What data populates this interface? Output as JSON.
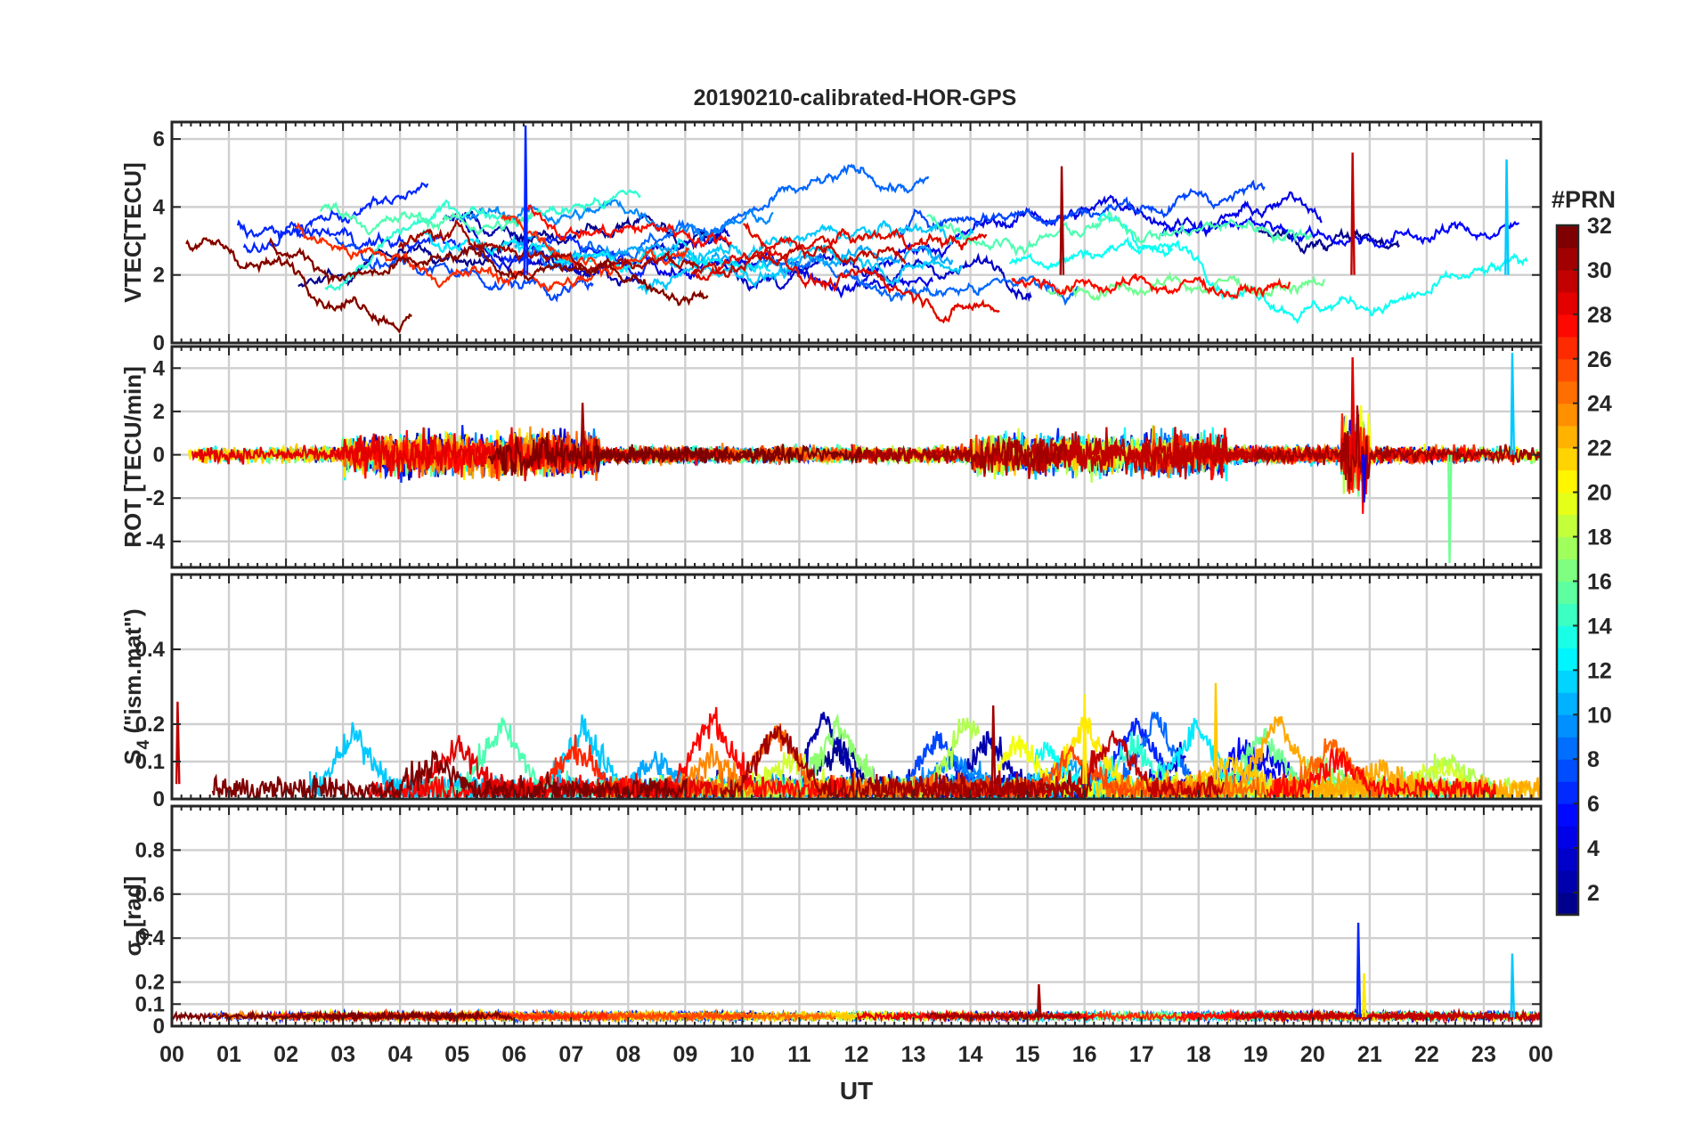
{
  "title": "20190210-calibrated-HOR-GPS",
  "colors": {
    "background": "#ffffff",
    "axis": "#262626",
    "grid": "#c8c8c8",
    "colormap": [
      "#00008f",
      "#0000ff",
      "#007fff",
      "#00ffff",
      "#7fff7f",
      "#ffff00",
      "#ff7f00",
      "#ff0000",
      "#7f0000"
    ]
  },
  "chart_data": [
    {
      "type": "line",
      "panel": "vtec",
      "ylabel": "VTEC[TECU]",
      "ylim": [
        0,
        6.5
      ],
      "yticks": [
        0,
        2,
        4,
        6
      ],
      "xlim": [
        0,
        24
      ],
      "series_count": 32,
      "notes": "Multi-satellite VTEC traces, mostly between 1 and 5 TECU, peaks near 6.4 at ~06 UT and 5.6 near 20.7 UT."
    },
    {
      "type": "line",
      "panel": "rot",
      "ylabel": "ROT [TECU/min]",
      "ylim": [
        -5.2,
        5
      ],
      "yticks": [
        -4,
        -2,
        0,
        2,
        4
      ],
      "xlim": [
        0,
        24
      ],
      "series_count": 32,
      "notes": "ROT fluctuations near zero, spikes ~4.5 at 20.7 UT and 23.5 UT, dip to -5 near 22.4 UT."
    },
    {
      "type": "line",
      "panel": "s4",
      "ylabel_main": "S",
      "ylabel_sub": "4",
      "ylabel_rest": " (\"ism.mat\")",
      "ylim": [
        0,
        0.6
      ],
      "yticks": [
        0,
        0.1,
        0.2,
        0.4
      ],
      "ytick_labels": [
        "0",
        "0.1",
        "0.2",
        "0.4"
      ],
      "xlim": [
        0,
        24
      ],
      "series_count": 32,
      "notes": "S4 index mostly below 0.1 with bursts to ~0.2-0.3."
    },
    {
      "type": "line",
      "panel": "sigma_phi",
      "ylabel_main": "σ",
      "ylabel_sub": "ϕ",
      "ylabel_rest": "[rad]",
      "ylim": [
        0,
        1
      ],
      "yticks": [
        0,
        0.1,
        0.2,
        0.4,
        0.6,
        0.8
      ],
      "ytick_labels": [
        "0",
        "0.1",
        "0.2",
        "0.4",
        "0.6",
        "0.8"
      ],
      "xlim": [
        0,
        24
      ],
      "series_count": 32,
      "notes": "Phase scintillation near 0.05 with spikes to ~0.47 at 20.8 UT and ~0.33 at 23.5 UT."
    }
  ],
  "xaxis": {
    "label": "UT",
    "ticks": [
      0,
      1,
      2,
      3,
      4,
      5,
      6,
      7,
      8,
      9,
      10,
      11,
      12,
      13,
      14,
      15,
      16,
      17,
      18,
      19,
      20,
      21,
      22,
      23,
      24
    ],
    "tick_labels": [
      "00",
      "01",
      "02",
      "03",
      "04",
      "05",
      "06",
      "07",
      "08",
      "09",
      "10",
      "11",
      "12",
      "13",
      "14",
      "15",
      "16",
      "17",
      "18",
      "19",
      "20",
      "21",
      "22",
      "23",
      "00"
    ]
  },
  "colorbar": {
    "title": "#PRN",
    "range": [
      1,
      32
    ],
    "ticks": [
      2,
      4,
      6,
      8,
      10,
      12,
      14,
      16,
      18,
      20,
      22,
      24,
      26,
      28,
      30,
      32
    ],
    "tick_labels": [
      "2",
      "4",
      "6",
      "8",
      "10",
      "12",
      "14",
      "16",
      "18",
      "20",
      "22",
      "24",
      "26",
      "28",
      "30",
      "32"
    ]
  }
}
